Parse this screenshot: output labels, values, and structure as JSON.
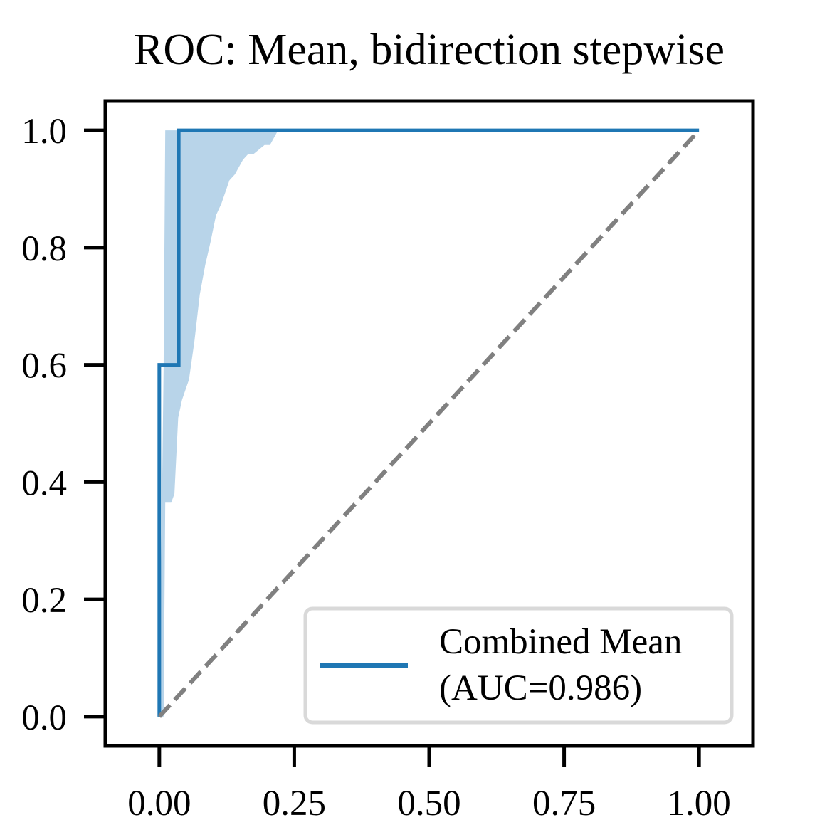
{
  "colors": {
    "roc_line": "#1f77b4",
    "ci_band": "#b8d4e9",
    "chance_line": "#808080",
    "axes": "#000000",
    "legend_border": "#d9d9d9"
  },
  "chart_data": {
    "type": "line",
    "title": "ROC: Mean, bidirection stepwise",
    "xlabel": "",
    "ylabel": "",
    "xlim": [
      -0.1,
      1.1
    ],
    "ylim": [
      -0.05,
      1.05
    ],
    "x_ticks": [
      0.0,
      0.25,
      0.5,
      0.75,
      1.0
    ],
    "x_tick_labels": [
      "0.00",
      "0.25",
      "0.50",
      "0.75",
      "1.00"
    ],
    "y_ticks": [
      0.0,
      0.2,
      0.4,
      0.6,
      0.8,
      1.0
    ],
    "y_tick_labels": [
      "0.0",
      "0.2",
      "0.4",
      "0.6",
      "0.8",
      "1.0"
    ],
    "grid": false,
    "legend_position": "lower-right",
    "series": [
      {
        "name": "Combined Mean\n(AUC=0.986)",
        "style": "solid",
        "x": [
          0.0,
          0.0,
          0.036,
          0.036,
          1.0
        ],
        "y": [
          0.0,
          0.6,
          0.6,
          1.0,
          1.0
        ]
      },
      {
        "style": "dashed",
        "x": [
          0.0,
          1.0
        ],
        "y": [
          0.0,
          1.0
        ]
      }
    ],
    "confidence_band": {
      "x": [
        0.0,
        0.008,
        0.011,
        0.022,
        0.028,
        0.035,
        0.042,
        0.055,
        0.065,
        0.075,
        0.085,
        0.095,
        0.105,
        0.115,
        0.13,
        0.14,
        0.155,
        0.165,
        0.175,
        0.195,
        0.205,
        0.22
      ],
      "upper": [
        0.0,
        0.6,
        1.0,
        1.0,
        1.0,
        1.0,
        1.0,
        1.0,
        1.0,
        1.0,
        1.0,
        1.0,
        1.0,
        1.0,
        1.0,
        1.0,
        1.0,
        1.0,
        1.0,
        1.0,
        1.0,
        1.0
      ],
      "lower": [
        0.0,
        0.0,
        0.365,
        0.365,
        0.38,
        0.51,
        0.54,
        0.575,
        0.64,
        0.72,
        0.77,
        0.81,
        0.855,
        0.875,
        0.915,
        0.925,
        0.95,
        0.96,
        0.96,
        0.975,
        0.975,
        1.0
      ]
    }
  }
}
